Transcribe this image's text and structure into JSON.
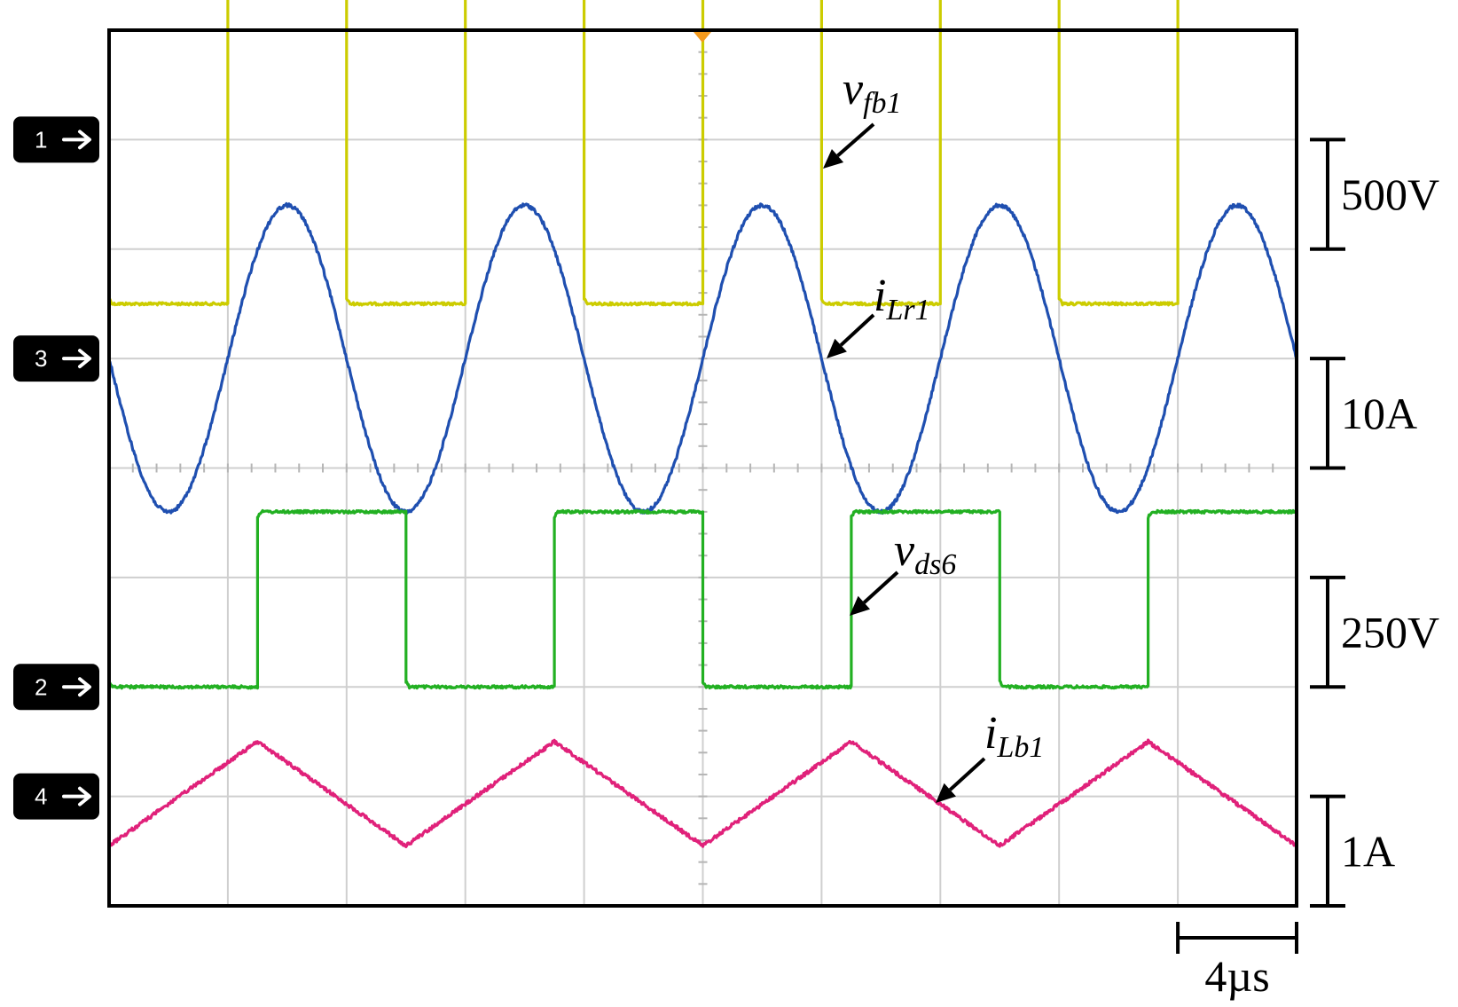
{
  "chart_data": {
    "type": "line",
    "title": "",
    "x_unit": "µs",
    "x_range_us": [
      0,
      40
    ],
    "period_us": 8,
    "time_scale": {
      "label": "4µs",
      "span_us": 4
    },
    "grid": true,
    "channels": [
      {
        "id": "1",
        "marker_label": "1",
        "name": "vfb1",
        "label_main": "v",
        "label_sub": "fb1",
        "color": "#cccc00",
        "scale_label": "500V",
        "scale_per_div": 500,
        "waveform": "square",
        "high_level": 750,
        "low_level": -750,
        "transitions_us": [
          4.0,
          8.0,
          12.0,
          16.0,
          20.0,
          24.0,
          28.0,
          32.0,
          36.0
        ]
      },
      {
        "id": "3",
        "marker_label": "3",
        "name": "iLr1",
        "label_main": "i",
        "label_sub": "Lr1",
        "color": "#1f4fb0",
        "scale_label": "10A",
        "scale_per_div": 10,
        "waveform": "sine",
        "amplitude": 14,
        "peaks_us": [
          6.0,
          14.0,
          22.0,
          30.0,
          38.0
        ],
        "troughs_us": [
          2.0,
          10.0,
          18.0,
          26.0,
          34.0
        ]
      },
      {
        "id": "2",
        "marker_label": "2",
        "name": "vds6",
        "label_main": "v",
        "label_sub": "ds6",
        "color": "#22b022",
        "scale_label": "250V",
        "scale_per_div": 250,
        "waveform": "square",
        "high_level": 400,
        "low_level": 0,
        "transitions_us": [
          5.0,
          10.0,
          15.0,
          20.0,
          25.0,
          30.0,
          35.0
        ]
      },
      {
        "id": "4",
        "marker_label": "4",
        "name": "iLb1",
        "label_main": "i",
        "label_sub": "Lb1",
        "color": "#e0217a",
        "scale_label": "1A",
        "scale_per_div": 1,
        "waveform": "triangle",
        "peaks_us": [
          5.0,
          15.0,
          25.0,
          35.0
        ],
        "troughs_us": [
          0.0,
          10.0,
          20.0,
          30.0,
          40.0
        ],
        "max": 0.5,
        "min": -0.45
      }
    ]
  }
}
